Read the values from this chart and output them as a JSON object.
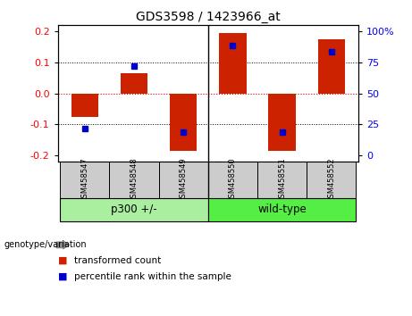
{
  "title": "GDS3598 / 1423966_at",
  "samples": [
    "GSM458547",
    "GSM458548",
    "GSM458549",
    "GSM458550",
    "GSM458551",
    "GSM458552"
  ],
  "bar_values": [
    -0.075,
    0.065,
    -0.185,
    0.195,
    -0.185,
    0.175
  ],
  "percentile_values": [
    -0.112,
    0.088,
    -0.125,
    0.155,
    -0.125,
    0.135
  ],
  "bar_color": "#CC2200",
  "dot_color": "#0000CC",
  "ylim": [
    -0.22,
    0.22
  ],
  "yticks_left": [
    -0.2,
    -0.1,
    0.0,
    0.1,
    0.2
  ],
  "yticks_right": [
    0,
    25,
    50,
    75,
    100
  ],
  "yticks_right_labels": [
    "0",
    "25",
    "50",
    "75",
    "100%"
  ],
  "yticks_right_pos": [
    -0.2,
    -0.1,
    0.0,
    0.1,
    0.2
  ],
  "groups": [
    {
      "label": "p300 +/-",
      "indices": [
        0,
        1,
        2
      ],
      "color": "#AAEEA0"
    },
    {
      "label": "wild-type",
      "indices": [
        3,
        4,
        5
      ],
      "color": "#55EE44"
    }
  ],
  "group_label": "genotype/variation",
  "legend_bar_label": "transformed count",
  "legend_dot_label": "percentile rank within the sample",
  "bar_width": 0.55,
  "hline_color": "#DD0000",
  "tick_left_color": "red",
  "tick_right_color": "blue"
}
